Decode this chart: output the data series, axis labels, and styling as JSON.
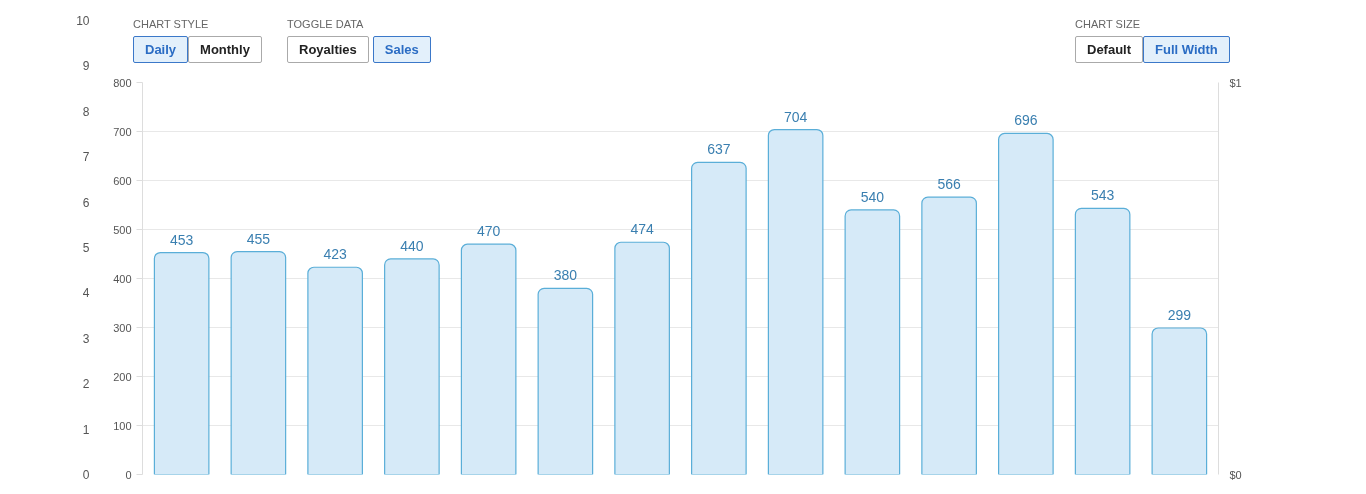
{
  "chart_data": {
    "type": "bar",
    "categories": [
      null,
      null,
      null,
      null,
      null,
      null,
      null,
      null,
      null,
      null,
      null,
      null,
      null,
      null
    ],
    "series": [
      {
        "color": "#d6eaf8",
        "values": [
          453,
          455,
          423,
          440,
          470,
          380,
          474,
          637,
          704,
          540,
          566,
          696,
          543,
          299
        ]
      }
    ],
    "data_labels": true,
    "ylim": [
      0,
      800
    ],
    "yticks": [
      0,
      100,
      200,
      300,
      400,
      500,
      600,
      700,
      800
    ],
    "y2lim": [
      0,
      1
    ],
    "y2ticks": [
      {
        "value": 0,
        "label": "$0"
      },
      {
        "value": 1,
        "label": "$1"
      }
    ],
    "y3lim": [
      0,
      10
    ],
    "y3ticks": [
      0,
      1,
      2,
      3,
      4,
      5,
      6,
      7,
      8,
      9,
      10
    ],
    "grid": "y",
    "tick_labels": "y",
    "annotations": [
      "CHART STYLE",
      "Daily",
      "Monthly",
      "TOGGLE DATA",
      "Royalties",
      "Sales",
      "CHART SIZE",
      "Default",
      "Full Width"
    ]
  }
}
